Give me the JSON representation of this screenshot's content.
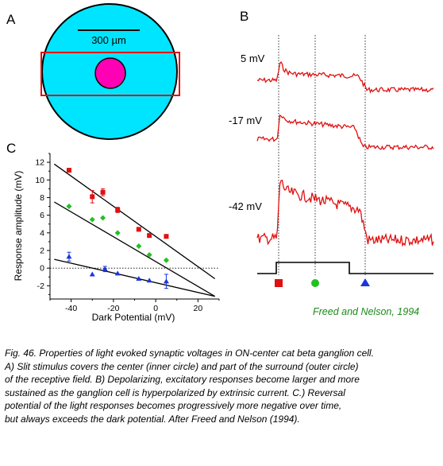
{
  "panels": {
    "a": {
      "letter": "A",
      "scale_label": "300 µm",
      "colors": {
        "surround": "#00e5ff",
        "center": "#ff00b4",
        "slit": "#e01010"
      }
    },
    "b": {
      "letter": "B",
      "trace_labels": [
        "5 mV",
        "-17 mV",
        "-42 mV"
      ],
      "colors": {
        "trace": "#e01010",
        "stimulus": "#000000"
      },
      "markers": [
        {
          "shape": "square",
          "color": "#e01010"
        },
        {
          "shape": "circle",
          "color": "#22c022"
        },
        {
          "shape": "triangle",
          "color": "#1a35e0"
        }
      ],
      "credit": "Freed and Nelson, 1994"
    },
    "c": {
      "letter": "C"
    }
  },
  "chart_data": {
    "type": "scatter",
    "xlabel": "Dark Potential (mV)",
    "ylabel": "Response amplitude (mV)",
    "xlim": [
      -50,
      30
    ],
    "ylim": [
      -3.5,
      13
    ],
    "x_ticks": [
      -40,
      -20,
      0,
      20
    ],
    "y_ticks": [
      -2,
      0,
      2,
      4,
      6,
      8,
      10,
      12
    ],
    "reference_line_y": 0,
    "series": [
      {
        "marker": "square",
        "color": "#e01010",
        "x": [
          -41,
          -30,
          -25,
          -18,
          -8,
          -3,
          5
        ],
        "y": [
          11.1,
          8.1,
          8.6,
          6.6,
          4.4,
          3.7,
          3.6
        ],
        "err": [
          0.2,
          0.7,
          0.4,
          0.3,
          0.2,
          0.2,
          0.2
        ],
        "fit": [
          [
            -48,
            11.8
          ],
          [
            28,
            -1.2
          ]
        ]
      },
      {
        "marker": "diamond",
        "color": "#22c022",
        "x": [
          -41,
          -30,
          -25,
          -18,
          -8,
          -3,
          5
        ],
        "y": [
          7.0,
          5.5,
          5.7,
          4.0,
          2.5,
          1.5,
          0.9
        ],
        "err": [
          0.2,
          0.2,
          0.2,
          0.2,
          0.2,
          0.2,
          0.2
        ],
        "fit": [
          [
            -48,
            7.5
          ],
          [
            28,
            -3.2
          ]
        ]
      },
      {
        "marker": "triangle",
        "color": "#1a35e0",
        "x": [
          -41,
          -30,
          -24,
          -18,
          -8,
          -3,
          5
        ],
        "y": [
          1.3,
          -0.7,
          -0.1,
          -0.6,
          -1.2,
          -1.4,
          -1.5
        ],
        "err": [
          0.5,
          0.2,
          0.3,
          0.2,
          0.2,
          0.2,
          0.8
        ],
        "fit": [
          [
            -48,
            1.0
          ],
          [
            28,
            -3.2
          ]
        ]
      }
    ]
  },
  "caption": [
    "Fig. 46. Properties of light evoked synaptic voltages in ON-center cat beta ganglion cell.",
    "A) Slit stimulus covers the center (inner circle) and part of the surround (outer circle)",
    "of the receptive field. B) Depolarizing, excitatory responses become larger and more",
    "sustained as the ganglion cell is hyperpolarized by extrinsic current. C.) Reversal",
    "potential of the light responses becomes progressively more negative over time,",
    "but always exceeds the dark potential. After Freed and Nelson (1994)."
  ]
}
